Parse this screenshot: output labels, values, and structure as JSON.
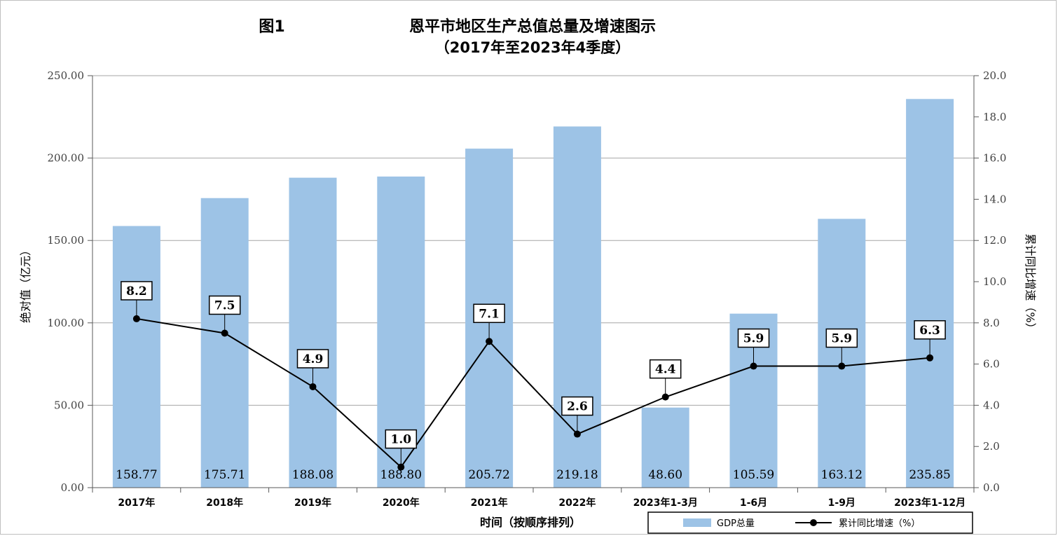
{
  "chart_data": {
    "type": "bar+line",
    "title_prefix": "图1",
    "title": "恩平市地区生产总值总量及增速图示",
    "subtitle": "（2017年至2023年4季度）",
    "xlabel": "时间（按顺序排列）",
    "ylabel_left": "绝对值（亿元）",
    "ylabel_right": "累计同比增速（%）",
    "categories": [
      "2017年",
      "2018年",
      "2019年",
      "2020年",
      "2021年",
      "2022年",
      "2023年1-3月",
      "1-6月",
      "1-9月",
      "2023年1-12月"
    ],
    "ylim_left": [
      0,
      250
    ],
    "ylim_right": [
      0,
      20
    ],
    "yticks_left": [
      "0.00",
      "50.00",
      "100.00",
      "150.00",
      "200.00",
      "250.00"
    ],
    "yticks_right": [
      "0.0",
      "2.0",
      "4.0",
      "6.0",
      "8.0",
      "10.0",
      "12.0",
      "14.0",
      "16.0",
      "18.0",
      "20.0"
    ],
    "grid": true,
    "legend_position": "bottom-right",
    "series": [
      {
        "name": "GDP总量",
        "type": "bar",
        "axis": "left",
        "color": "#9dc3e6",
        "values": [
          158.77,
          175.71,
          188.08,
          188.8,
          205.72,
          219.18,
          48.6,
          105.59,
          163.12,
          235.85
        ],
        "labels": [
          "158.77",
          "175.71",
          "188.08",
          "188.80",
          "205.72",
          "219.18",
          "48.60",
          "105.59",
          "163.12",
          "235.85"
        ]
      },
      {
        "name": "累计同比增速（%）",
        "type": "line",
        "axis": "right",
        "color": "#000000",
        "values": [
          8.2,
          7.5,
          4.9,
          1.0,
          7.1,
          2.6,
          4.4,
          5.9,
          5.9,
          6.3
        ],
        "labels": [
          "8.2",
          "7.5",
          "4.9",
          "1.0",
          "7.1",
          "2.6",
          "4.4",
          "5.9",
          "5.9",
          "6.3"
        ]
      }
    ]
  }
}
